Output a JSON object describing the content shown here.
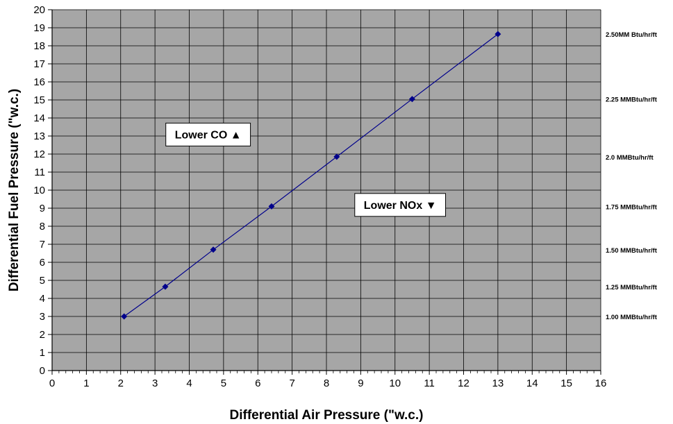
{
  "chart_data": {
    "type": "line",
    "title": "",
    "xlabel": "Differential Air Pressure (\"w.c.)",
    "ylabel": "Differential Fuel Pressure (\"w.c.)",
    "xlim": [
      0,
      16
    ],
    "ylim": [
      0,
      20
    ],
    "x_ticks": [
      "0",
      "1",
      "2",
      "3",
      "4",
      "5",
      "6",
      "7",
      "8",
      "9",
      "10",
      "11",
      "12",
      "13",
      "14",
      "15",
      "16"
    ],
    "y_ticks": [
      "0",
      "1",
      "2",
      "3",
      "4",
      "5",
      "6",
      "7",
      "8",
      "9",
      "10",
      "11",
      "12",
      "13",
      "14",
      "15",
      "16",
      "17",
      "18",
      "19",
      "20"
    ],
    "grid": true,
    "plot_background": "#a6a6a6",
    "series": [
      {
        "color": "#00008b",
        "marker": "diamond",
        "x": [
          2.1,
          3.3,
          4.7,
          6.4,
          8.3,
          10.5,
          13.0
        ],
        "y": [
          3.0,
          4.65,
          6.7,
          9.1,
          11.85,
          15.05,
          18.65
        ]
      }
    ],
    "rate_labels": [
      {
        "text": "2.50MM Btu/hr/ft",
        "y": 18.65
      },
      {
        "text": "2.25 MMBtu/hr/ft",
        "y": 15.05
      },
      {
        "text": "2.0 MMBtu/hr/ft",
        "y": 11.85
      },
      {
        "text": "1.75 MMBtu/hr/ft",
        "y": 9.1
      },
      {
        "text": "1.50 MMBtu/hr/ft",
        "y": 6.7
      },
      {
        "text": "1.25 MMBtu/hr/ft",
        "y": 4.65
      },
      {
        "text": "1.00 MMBtu/hr/ft",
        "y": 3.0
      }
    ],
    "annotations": [
      {
        "text": "Lower CO",
        "symbol": "▲",
        "x": 4.55,
        "y": 13.1
      },
      {
        "text": "Lower NOx",
        "symbol": "▼",
        "x": 10.15,
        "y": 9.2
      }
    ]
  }
}
